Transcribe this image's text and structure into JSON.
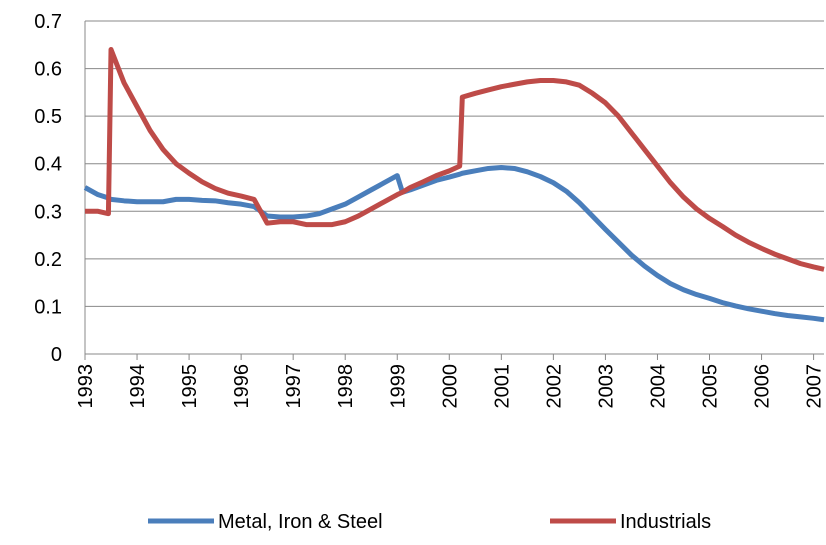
{
  "chart_data": {
    "type": "line",
    "x": [
      1993,
      1993.25,
      1993.45,
      1993.5,
      1993.75,
      1994,
      1994.25,
      1994.5,
      1994.75,
      1995,
      1995.25,
      1995.5,
      1995.75,
      1996,
      1996.25,
      1996.5,
      1996.75,
      1997,
      1997.25,
      1997.5,
      1997.75,
      1998,
      1998.25,
      1998.5,
      1998.75,
      1999,
      1999.1,
      1999.25,
      1999.5,
      1999.75,
      2000,
      2000.2,
      2000.25,
      2000.5,
      2000.75,
      2001,
      2001.25,
      2001.5,
      2001.75,
      2002,
      2002.25,
      2002.5,
      2002.75,
      2003,
      2003.25,
      2003.5,
      2003.75,
      2004,
      2004.25,
      2004.5,
      2004.75,
      2005,
      2005.25,
      2005.5,
      2005.75,
      2006,
      2006.25,
      2006.5,
      2006.75,
      2007,
      2007.2
    ],
    "series": [
      {
        "name": "Metal, Iron & Steel",
        "color": "#4a7ebb",
        "values": [
          0.35,
          0.335,
          0.328,
          0.325,
          0.322,
          0.32,
          0.32,
          0.32,
          0.325,
          0.325,
          0.323,
          0.322,
          0.318,
          0.315,
          0.31,
          0.29,
          0.288,
          0.288,
          0.29,
          0.295,
          0.305,
          0.315,
          0.33,
          0.345,
          0.36,
          0.375,
          0.34,
          0.345,
          0.355,
          0.365,
          0.372,
          0.378,
          0.38,
          0.385,
          0.39,
          0.392,
          0.39,
          0.383,
          0.373,
          0.36,
          0.342,
          0.318,
          0.29,
          0.262,
          0.235,
          0.208,
          0.185,
          0.165,
          0.148,
          0.135,
          0.125,
          0.117,
          0.108,
          0.101,
          0.095,
          0.09,
          0.085,
          0.081,
          0.078,
          0.075,
          0.072
        ]
      },
      {
        "name": "Industrials",
        "color": "#be4b48",
        "values": [
          0.3,
          0.3,
          0.295,
          0.64,
          0.57,
          0.52,
          0.47,
          0.43,
          0.4,
          0.38,
          0.362,
          0.348,
          0.338,
          0.332,
          0.325,
          0.275,
          0.278,
          0.278,
          0.272,
          0.272,
          0.272,
          0.278,
          0.29,
          0.305,
          0.32,
          0.335,
          0.34,
          0.35,
          0.362,
          0.375,
          0.385,
          0.395,
          0.54,
          0.548,
          0.555,
          0.562,
          0.567,
          0.572,
          0.575,
          0.575,
          0.572,
          0.565,
          0.548,
          0.528,
          0.5,
          0.465,
          0.43,
          0.395,
          0.36,
          0.33,
          0.305,
          0.285,
          0.268,
          0.25,
          0.235,
          0.222,
          0.21,
          0.2,
          0.19,
          0.183,
          0.178
        ]
      }
    ],
    "xlim": [
      1993,
      2007.2
    ],
    "xticks": [
      1993,
      1994,
      1995,
      1996,
      1997,
      1998,
      1999,
      2000,
      2001,
      2002,
      2003,
      2004,
      2005,
      2006,
      2007
    ],
    "ylim": [
      0,
      0.7
    ],
    "yticks": [
      0,
      0.1,
      0.2,
      0.3,
      0.4,
      0.5,
      0.6,
      0.7
    ],
    "grid": true,
    "legend": "bottom"
  }
}
